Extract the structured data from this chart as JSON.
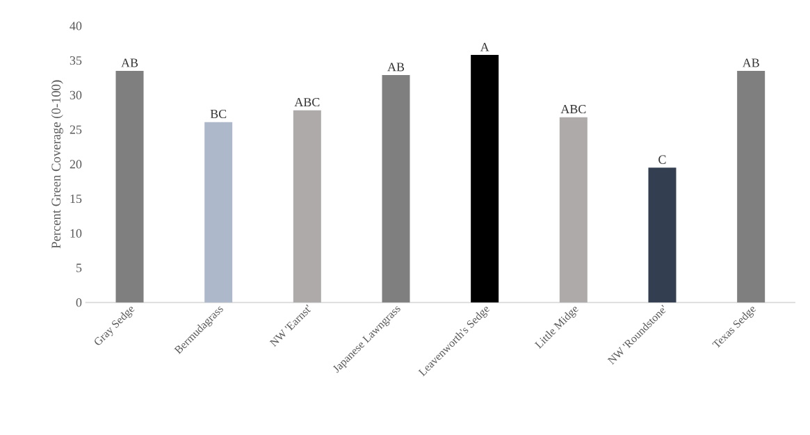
{
  "chart_data": {
    "type": "bar",
    "ylabel": "Percent Green Coverage (0-100)",
    "categories": [
      "Gray Sedge",
      "Bermudagrass",
      "NW 'Earnst'",
      "Japanese Lawngrass",
      "Leavenworth's Sedge",
      "Little Midge",
      "NW 'Roundstone'",
      "Texas Sedge"
    ],
    "values": [
      33.5,
      26.1,
      27.8,
      32.9,
      35.8,
      26.8,
      19.5,
      33.5
    ],
    "colors": [
      "#7f7f7f",
      "#adb9ca",
      "#aeaaaa",
      "#7f7f7f",
      "#000000",
      "#aeaaaa",
      "#333f50",
      "#7f7f7f"
    ],
    "value_labels": [
      "AB",
      "BC",
      "ABC",
      "AB",
      "A",
      "ABC",
      "C",
      "AB"
    ],
    "ylim": [
      0,
      40
    ],
    "yticks": [
      0,
      5,
      10,
      15,
      20,
      25,
      30,
      35,
      40
    ]
  }
}
